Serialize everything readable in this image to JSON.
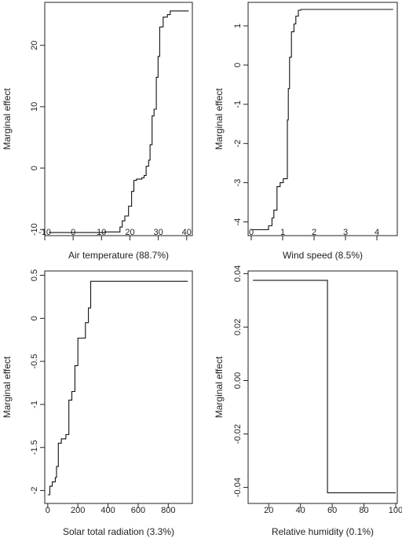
{
  "chart_data": [
    {
      "type": "line",
      "xlabel": "Air temperature   (88.7%)",
      "ylabel": "Marginal effect",
      "xlim": [
        -10,
        42
      ],
      "ylim": [
        -11,
        27
      ],
      "xticks": [
        -10,
        0,
        10,
        20,
        30,
        40
      ],
      "yticks": [
        -10,
        0,
        10,
        20
      ],
      "series": [
        {
          "step": true,
          "x": [
            -8.5,
            11,
            16.5,
            17.3,
            18.2,
            19.5,
            20.6,
            21.4,
            22.3,
            24.2,
            25.0,
            25.7,
            26.6,
            27.1,
            27.8,
            28.5,
            29.3,
            29.9,
            30.5,
            31.7,
            33.2,
            34.2,
            40.7
          ],
          "y": [
            -10.5,
            -10.4,
            -9.6,
            -8.6,
            -7.8,
            -6.2,
            -3.8,
            -2.0,
            -1.8,
            -1.6,
            -1.2,
            0.3,
            1.3,
            3.8,
            8.5,
            9.6,
            14.8,
            18.2,
            23.0,
            24.6,
            25.0,
            25.6,
            25.6
          ]
        }
      ]
    },
    {
      "type": "line",
      "xlabel": "Wind speed   (8.5%)",
      "ylabel": "Marginal effect",
      "xlim": [
        -0.1,
        4.65
      ],
      "ylim": [
        -4.35,
        1.6
      ],
      "xticks": [
        0,
        1,
        2,
        3,
        4
      ],
      "yticks": [
        -4,
        -3,
        -2,
        -1,
        0,
        1
      ],
      "series": [
        {
          "step": true,
          "x": [
            0,
            0.55,
            0.66,
            0.72,
            0.82,
            0.92,
            1.02,
            1.15,
            1.18,
            1.22,
            1.28,
            1.36,
            1.42,
            1.5,
            1.58,
            4.52
          ],
          "y": [
            -4.2,
            -4.1,
            -3.9,
            -3.7,
            -3.1,
            -3.0,
            -2.9,
            -1.4,
            -0.6,
            0.2,
            0.85,
            1.05,
            1.25,
            1.4,
            1.42,
            1.42
          ]
        }
      ]
    },
    {
      "type": "line",
      "xlabel": "Solar total radiation   (3.3%)",
      "ylabel": "Marginal effect",
      "xlim": [
        -20,
        960
      ],
      "ylim": [
        -2.15,
        0.55
      ],
      "xticks": [
        0,
        200,
        400,
        600,
        800
      ],
      "yticks": [
        -2.0,
        -1.5,
        -1.0,
        -0.5,
        0.0,
        0.5
      ],
      "series": [
        {
          "step": true,
          "x": [
            0,
            14,
            30,
            50,
            58,
            70,
            90,
            120,
            140,
            160,
            180,
            200,
            215,
            250,
            270,
            285,
            930
          ],
          "y": [
            -2.05,
            -1.95,
            -1.9,
            -1.85,
            -1.72,
            -1.45,
            -1.4,
            -1.35,
            -0.95,
            -0.85,
            -0.55,
            -0.23,
            -0.23,
            -0.05,
            0.12,
            0.43,
            0.43
          ]
        }
      ]
    },
    {
      "type": "line",
      "xlabel": "Relative humidity   (0.1%)",
      "ylabel": "Marginal effect",
      "xlim": [
        7,
        101
      ],
      "ylim": [
        -0.046,
        0.041
      ],
      "xticks": [
        20,
        40,
        60,
        80,
        100
      ],
      "yticks": [
        -0.04,
        -0.02,
        0.0,
        0.02,
        0.04
      ],
      "tick_format": [
        "-0.04",
        "-0.02",
        "0.00",
        "0.02",
        "0.04"
      ],
      "series": [
        {
          "step": true,
          "x": [
            10,
            57,
            100
          ],
          "y": [
            0.0375,
            -0.042,
            -0.042
          ]
        }
      ]
    }
  ]
}
